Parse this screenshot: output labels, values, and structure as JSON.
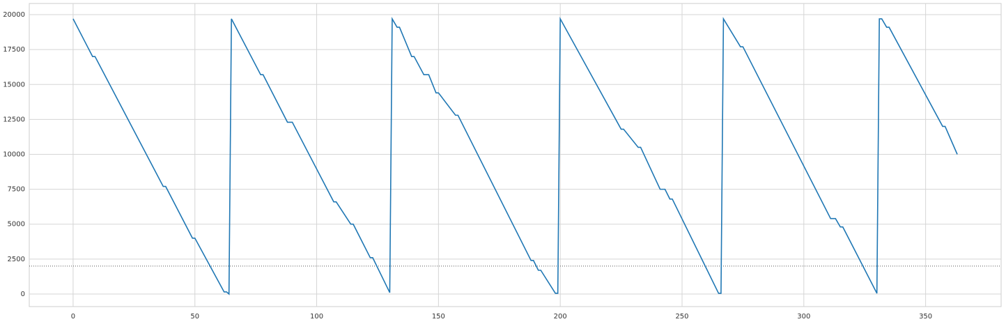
{
  "chart_data": {
    "type": "line",
    "x": [
      0,
      8,
      9,
      37,
      38,
      49,
      50,
      62,
      63,
      64,
      65,
      77,
      78,
      88,
      90,
      107,
      108,
      114,
      115,
      122,
      123,
      130,
      131,
      133,
      134,
      139,
      140,
      144,
      146,
      149,
      150,
      157,
      158,
      188,
      189,
      191,
      192,
      198,
      199,
      200,
      225,
      226,
      232,
      233,
      241,
      243,
      245,
      246,
      265,
      266,
      267,
      274,
      275,
      311,
      313,
      315,
      316,
      330,
      331,
      332,
      334,
      335,
      357,
      358,
      363
    ],
    "series": [
      {
        "color": "#1f77b4",
        "values": [
          19700,
          17000,
          17000,
          7700,
          7700,
          4000,
          4000,
          150,
          150,
          0,
          19700,
          15700,
          15700,
          12300,
          12300,
          6600,
          6600,
          5000,
          5000,
          2600,
          2600,
          100,
          19700,
          19100,
          19100,
          17000,
          17000,
          15700,
          15700,
          14400,
          14400,
          12800,
          12800,
          2400,
          2400,
          1700,
          1700,
          50,
          50,
          19700,
          11800,
          11800,
          10500,
          10500,
          7500,
          7500,
          6800,
          6800,
          50,
          50,
          19700,
          17700,
          17700,
          5400,
          5400,
          4800,
          4800,
          50,
          19700,
          19700,
          19100,
          19100,
          12000,
          12000,
          10000
        ]
      }
    ],
    "hline": 2000,
    "xlim": [
      -18,
      381
    ],
    "ylim": [
      -900,
      20800
    ],
    "xticks": [
      0,
      50,
      100,
      150,
      200,
      250,
      300,
      350
    ],
    "yticks": [
      0,
      2500,
      5000,
      7500,
      10000,
      12500,
      15000,
      17500,
      20000
    ],
    "grid": true
  }
}
